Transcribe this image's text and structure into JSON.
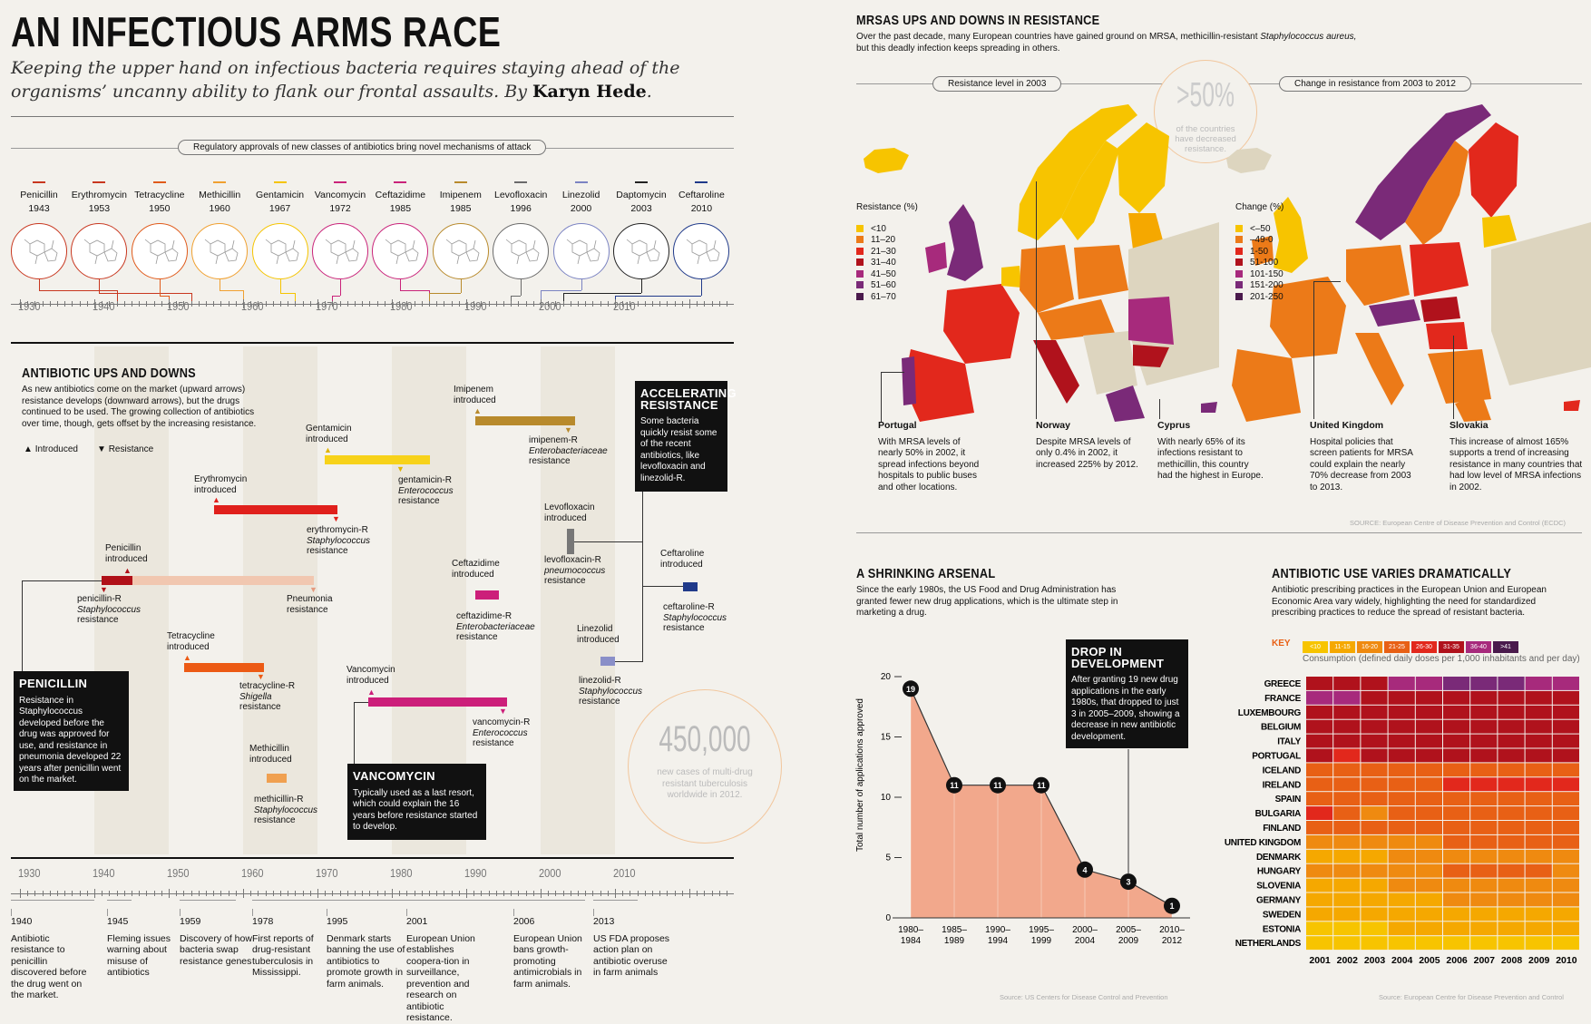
{
  "header": {
    "title": "AN INFECTIOUS ARMS RACE",
    "subtitle": "Keeping the upper hand on infectious bacteria requires staying ahead of the organisms’ uncanny ability to flank our frontal assaults. By",
    "author": "Karyn Hede"
  },
  "approvals": {
    "pill": "Regulatory approvals of new classes of antibiotics bring novel mechanisms of attack",
    "drugs": [
      {
        "name": "Penicillin",
        "year": "1943",
        "color": "#c8371f"
      },
      {
        "name": "Erythromycin",
        "year": "1953",
        "color": "#c8371f"
      },
      {
        "name": "Tetracycline",
        "year": "1950",
        "color": "#e05a1a"
      },
      {
        "name": "Methicillin",
        "year": "1960",
        "color": "#f0a030"
      },
      {
        "name": "Gentamicin",
        "year": "1967",
        "color": "#f5c400"
      },
      {
        "name": "Vancomycin",
        "year": "1972",
        "color": "#c9237a"
      },
      {
        "name": "Ceftazidime",
        "year": "1985",
        "color": "#c9237a"
      },
      {
        "name": "Imipenem",
        "year": "1985",
        "color": "#b88a2c"
      },
      {
        "name": "Levofloxacin",
        "year": "1996",
        "color": "#6a6a6a"
      },
      {
        "name": "Linezolid",
        "year": "2000",
        "color": "#7b83c2"
      },
      {
        "name": "Daptomycin",
        "year": "2003",
        "color": "#222222"
      },
      {
        "name": "Ceftaroline",
        "year": "2010",
        "color": "#203a8a"
      }
    ],
    "decades": [
      "1930",
      "1940",
      "1950",
      "1960",
      "1970",
      "1980",
      "1990",
      "2000",
      "2010"
    ]
  },
  "ups_downs": {
    "title": "ANTIBIOTIC UPS AND DOWNS",
    "body": "As new antibiotics come on the market (upward arrows) resistance develops (downward arrows), but the drugs continued to be used. The growing collection of antibiotics over time, though, gets offset by the increasing resistance.",
    "legend_introduced": "Introduced",
    "legend_resistance": "Resistance",
    "items": [
      {
        "intro": "Penicillin\nintroduced",
        "res_name": "penicillin-R",
        "res_org": "Staphylococcus",
        "res_word": "resistance"
      },
      {
        "intro": "Erythromycin\nintroduced",
        "res_name": "erythromycin-R",
        "res_org": "Staphylococcus",
        "res_word": "resistance"
      },
      {
        "intro": "Gentamicin\nintroduced",
        "res_name": "gentamicin-R",
        "res_org": "Enterococcus",
        "res_word": "resistance"
      },
      {
        "intro": "Imipenem\nintroduced",
        "res_name": "imipenem-R",
        "res_org": "Enterobacteriaceae",
        "res_word": "resistance"
      },
      {
        "intro": "Tetracycline\nintroduced",
        "res_name": "tetracycline-R",
        "res_org": "Shigella",
        "res_word": "resistance"
      },
      {
        "intro": "Methicillin\nintroduced",
        "res_name": "methicillin-R",
        "res_org": "Staphylococcus",
        "res_word": "resistance"
      },
      {
        "intro": "Vancomycin\nintroduced",
        "res_name": "vancomycin-R",
        "res_org": "Enterococcus",
        "res_word": "resistance"
      },
      {
        "intro": "Ceftazidime\nintroduced",
        "res_name": "ceftazidime-R",
        "res_org": "Enterobacteriaceae",
        "res_word": "resistance"
      },
      {
        "intro": "Levofloxacin\nintroduced",
        "res_name": "levofloxacin-R",
        "res_org": "pneumococcus",
        "res_word": "resistance"
      },
      {
        "intro": "Linezolid\nintroduced",
        "res_name": "linezolid-R",
        "res_org": "Staphylococcus",
        "res_word": "resistance"
      },
      {
        "intro": "Ceftaroline\nintroduced",
        "res_name": "ceftaroline-R",
        "res_org": "Staphylococcus",
        "res_word": "resistance"
      }
    ],
    "pneumonia": "Pneumonia\nresistance",
    "box_penicillin": {
      "title": "PENICILLIN",
      "text": "Resistance in Staphylococcus developed before the drug was approved for use, and resistance in pneumonia developed 22 years after penicillin went on the market."
    },
    "box_vancomycin": {
      "title": "VANCOMYCIN",
      "text": "Typically used as a last resort, which could explain the 16 years before resistance started to develop."
    },
    "box_accel": {
      "title": "ACCELERATING RESISTANCE",
      "text": "Some bacteria quickly resist some of the recent antibiotics, like levofloxacin and linezolid-R."
    },
    "tb": {
      "number": "450,000",
      "text": "new cases of multi-drug resistant tuberculosis worldwide in 2012."
    }
  },
  "events": [
    {
      "year": "1940",
      "text": "Antibiotic resistance to penicillin discovered before the drug went on the market."
    },
    {
      "year": "1945",
      "text": "Fleming issues warning about misuse of antibiotics"
    },
    {
      "year": "1959",
      "text": "Discovery of how bacteria swap resistance genes"
    },
    {
      "year": "1978",
      "text": "First reports of drug-resistant tuberculosis in Mississippi."
    },
    {
      "year": "1995",
      "text": "Denmark starts banning the use of antibiotics to promote growth in farm animals."
    },
    {
      "year": "2001",
      "text": "European Union establishes coopera-tion in surveillance, prevention and research on antibiotic resistance."
    },
    {
      "year": "2006",
      "text": "European Union bans growth-promoting antimicrobials in farm animals."
    },
    {
      "year": "2013",
      "text": "US FDA proposes action plan on antibiotic overuse in farm animals"
    }
  ],
  "mrsa": {
    "title": "MRSAS UPS AND DOWNS IN RESISTANCE",
    "body_a": "Over the past decade, many European countries have gained ground on MRSA, methicillin-resistant",
    "body_species": "Staphylococcus aureus,",
    "body_b": "but this deadly infection keeps spreading in others.",
    "pill_left": "Resistance level in 2003",
    "pill_right": "Change in resistance from 2003 to 2012",
    "big_stat": ">50%",
    "big_stat_text": "of the countries have decreased resistance.",
    "legend_left_title": "Resistance (%)",
    "legend_left": [
      {
        "label": "<10",
        "color": "#f7c400"
      },
      {
        "label": "11–20",
        "color": "#ec7a18"
      },
      {
        "label": "21–30",
        "color": "#e2281c"
      },
      {
        "label": "31–40",
        "color": "#b0121c"
      },
      {
        "label": "41–50",
        "color": "#a72a7c"
      },
      {
        "label": "51–60",
        "color": "#7a2a78"
      },
      {
        "label": "61–70",
        "color": "#4a1a4c"
      }
    ],
    "legend_right_title": "Change (%)",
    "legend_right": [
      {
        "label": "<–50",
        "color": "#f7c400"
      },
      {
        "label": "–49-0",
        "color": "#ec7a18"
      },
      {
        "label": "1-50",
        "color": "#e2281c"
      },
      {
        "label": "51-100",
        "color": "#b0121c"
      },
      {
        "label": "101-150",
        "color": "#a72a7c"
      },
      {
        "label": "151-200",
        "color": "#7a2a78"
      },
      {
        "label": "201-250",
        "color": "#4a1a4c"
      }
    ],
    "annotations": [
      {
        "title": "Portugal",
        "text": "With MRSA levels of nearly 50% in 2002, it spread infections beyond hospitals to public buses and other locations."
      },
      {
        "title": "Norway",
        "text": "Despite MRSA levels of only 0.4% in 2002, it increased 225% by 2012."
      },
      {
        "title": "Cyprus",
        "text": "With nearly 65% of its infections resistant to methicillin, this country had the highest in Europe."
      },
      {
        "title": "United Kingdom",
        "text": "Hospital policies that screen patients for MRSA could explain the nearly 70% decrease from 2003 to 2013."
      },
      {
        "title": "Slovakia",
        "text": "This increase of almost 165% supports a trend of increasing resistance in many countries that had low level of MRSA infections in 2002."
      }
    ],
    "source": "SOURCE: European Centre of Disease Prevention and Control (ECDC)"
  },
  "arsenal": {
    "title": "A SHRINKING ARSENAL",
    "body": "Since the early 1980s, the US Food and Drug Administration has granted fewer new drug applications, which is the ultimate step in marketing a drug.",
    "box": {
      "title": "DROP IN DEVELOPMENT",
      "text": "After granting 19 new drug applications in the early 1980s, that dropped to just 3 in 2005–2009, showing a decrease in new antibiotic development."
    },
    "source": "Source: US Centers for Disease Control and Prevention"
  },
  "usage": {
    "title": "ANTIBIOTIC USE VARIES DRAMATICALLY",
    "body": "Antibiotic prescribing practices in the European Union and European Economic Area vary widely, highlighting the need for standardized prescribing practices to reduce the spread of resistant bacteria.",
    "key_label": "KEY",
    "key_caption": "Consumption (defined daily doses per 1,000 inhabitants and per day)",
    "source": "Source: European Centre for Disease Prevention and Control"
  },
  "colors": {
    "heat": [
      "#f7c400",
      "#f5a800",
      "#ef8a10",
      "#e86015",
      "#e2281c",
      "#b0121c",
      "#a72a7c",
      "#7a2a78",
      "#4a1a4c"
    ]
  },
  "chart_data": [
    {
      "type": "line",
      "title": "A SHRINKING ARSENAL",
      "ylabel": "Total number of applications approved",
      "x": [
        "1980–1984",
        "1985–1989",
        "1990–1994",
        "1995–1999",
        "2000–2004",
        "2005–2009",
        "2010–2012"
      ],
      "values": [
        19,
        11,
        11,
        11,
        4,
        3,
        1
      ],
      "ylim": [
        0,
        20
      ],
      "yticks": [
        0,
        5,
        10,
        15,
        20
      ]
    },
    {
      "type": "heatmap",
      "title": "ANTIBIOTIC USE VARIES DRAMATICALLY",
      "key": [
        "<10",
        "11-15",
        "16-20",
        "21-25",
        "26-30",
        "31-35",
        "36-40",
        ">41"
      ],
      "x": [
        "2001",
        "2002",
        "2003",
        "2004",
        "2005",
        "2006",
        "2007",
        "2008",
        "2009",
        "2010"
      ],
      "y": [
        "GREECE",
        "FRANCE",
        "LUXEMBOURG",
        "BELGIUM",
        "ITALY",
        "PORTUGAL",
        "ICELAND",
        "IRELAND",
        "SPAIN",
        "BULGARIA",
        "FINLAND",
        "UNITED KINGDOM",
        "DENMARK",
        "HUNGARY",
        "SLOVENIA",
        "GERMANY",
        "SWEDEN",
        "ESTONIA",
        "NETHERLANDS"
      ],
      "levels": [
        [
          5,
          5,
          5,
          6,
          6,
          7,
          7,
          7,
          6,
          6
        ],
        [
          6,
          6,
          5,
          5,
          5,
          5,
          5,
          5,
          5,
          5
        ],
        [
          5,
          5,
          5,
          5,
          5,
          5,
          5,
          5,
          5,
          5
        ],
        [
          5,
          5,
          5,
          5,
          5,
          5,
          5,
          5,
          5,
          5
        ],
        [
          5,
          5,
          5,
          5,
          5,
          5,
          5,
          5,
          5,
          5
        ],
        [
          5,
          4,
          5,
          5,
          5,
          5,
          5,
          5,
          5,
          5
        ],
        [
          3,
          3,
          3,
          3,
          3,
          3,
          3,
          3,
          3,
          3
        ],
        [
          3,
          3,
          3,
          3,
          3,
          4,
          4,
          4,
          4,
          4
        ],
        [
          3,
          3,
          3,
          3,
          3,
          3,
          3,
          3,
          3,
          3
        ],
        [
          4,
          3,
          2,
          3,
          3,
          3,
          3,
          3,
          3,
          3
        ],
        [
          3,
          3,
          3,
          3,
          3,
          3,
          3,
          3,
          3,
          3
        ],
        [
          2,
          2,
          2,
          2,
          2,
          3,
          3,
          3,
          3,
          3
        ],
        [
          1,
          1,
          1,
          2,
          2,
          2,
          2,
          2,
          2,
          2
        ],
        [
          2,
          2,
          2,
          2,
          2,
          3,
          3,
          3,
          3,
          2
        ],
        [
          1,
          1,
          1,
          2,
          2,
          2,
          2,
          2,
          2,
          2
        ],
        [
          1,
          1,
          1,
          1,
          1,
          2,
          2,
          2,
          2,
          2
        ],
        [
          1,
          1,
          1,
          1,
          1,
          1,
          1,
          1,
          1,
          1
        ],
        [
          0,
          0,
          0,
          1,
          1,
          1,
          1,
          1,
          1,
          1
        ],
        [
          0,
          0,
          0,
          0,
          0,
          0,
          0,
          0,
          0,
          0
        ]
      ]
    }
  ]
}
